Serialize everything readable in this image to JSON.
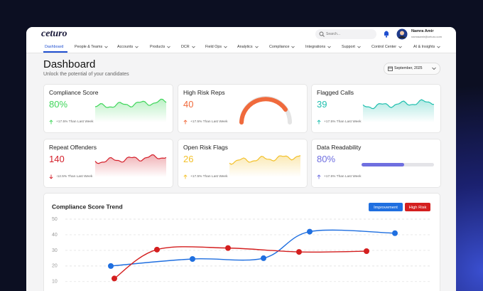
{
  "header": {
    "logo": "ceturo",
    "search_placeholder": "Search...",
    "user": {
      "name": "Namra Amir",
      "email": "namraamir@ceturo.com"
    }
  },
  "nav": [
    "Dashboard",
    "People & Teams",
    "Accounts",
    "Products",
    "DCR",
    "Field Ops",
    "Analytics",
    "Compliance",
    "Integrations",
    "Support",
    "Control Center",
    "AI & Insights"
  ],
  "page": {
    "title": "Dashboard",
    "subtitle": "Unlock the potential of your candidates",
    "date": "September, 2025"
  },
  "cards": [
    {
      "title": "Compliance Score",
      "value": "80%",
      "change": "+17.5% Than Last Week",
      "trend": "up",
      "visual": "sparkline",
      "color": "#3fd65a"
    },
    {
      "title": "High Risk Reps",
      "value": "40",
      "change": "+17.5% Than Last Week",
      "trend": "up",
      "visual": "gauge",
      "color": "#f06a3c"
    },
    {
      "title": "Flagged Calls",
      "value": "39",
      "change": "+17.5% Than Last Week",
      "trend": "up",
      "visual": "sparkline",
      "color": "#1fbfae"
    },
    {
      "title": "Repeat Offenders",
      "value": "140",
      "change": "-12.5% Than Last Week",
      "trend": "down",
      "visual": "sparkline",
      "color": "#d41f2a"
    },
    {
      "title": "Open Risk Flags",
      "value": "26",
      "change": "+17.5% Than Last Week",
      "trend": "up",
      "visual": "sparkline",
      "color": "#f3c12b"
    },
    {
      "title": "Data Readability",
      "value": "80%",
      "change": "+17.5% Than Last Week",
      "trend": "up",
      "visual": "progress",
      "color": "#6f6fe0"
    }
  ],
  "chart_data": {
    "type": "line",
    "title": "Compliance Score Trend",
    "xlim": [
      0,
      10
    ],
    "ylim": [
      4,
      50
    ],
    "yticks": [
      10,
      20,
      30,
      40,
      50
    ],
    "grid": true,
    "series": [
      {
        "name": "Improvement",
        "color": "#1f6fe0",
        "x": [
          1,
          3.3,
          5.3,
          6.6,
          9
        ],
        "values": [
          20,
          24.5,
          25,
          42,
          41
        ]
      },
      {
        "name": "High Risk",
        "color": "#d41f1f",
        "x": [
          1.1,
          2.3,
          4.3,
          6.3,
          8.2
        ],
        "values": [
          12,
          30.5,
          31.5,
          29,
          29.5
        ]
      }
    ]
  }
}
